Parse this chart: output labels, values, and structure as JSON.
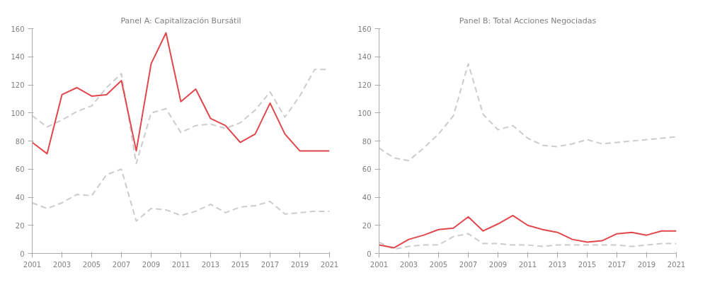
{
  "chart_data": [
    {
      "type": "line",
      "title": "Panel A: Capitalización Bursátil",
      "x": [
        2001,
        2002,
        2003,
        2004,
        2005,
        2006,
        2007,
        2008,
        2009,
        2010,
        2011,
        2012,
        2013,
        2014,
        2015,
        2016,
        2017,
        2018,
        2019,
        2020,
        2021
      ],
      "series": [
        {
          "color": "#cccccc",
          "line_style": "dashed",
          "values": [
            98,
            90,
            95,
            101,
            105,
            118,
            128,
            64,
            100,
            103,
            86,
            91,
            92,
            89,
            93,
            102,
            115,
            97,
            112,
            131,
            131
          ]
        },
        {
          "color": "#cccccc",
          "line_style": "dashed",
          "values": [
            36,
            32,
            36,
            42,
            41,
            56,
            60,
            23,
            32,
            31,
            27,
            30,
            35,
            29,
            33,
            34,
            37,
            28,
            29,
            30,
            30
          ]
        },
        {
          "color": "#e0474c",
          "line_style": "solid",
          "values": [
            79,
            71,
            113,
            118,
            112,
            113,
            123,
            73,
            135,
            157,
            108,
            117,
            96,
            91,
            79,
            85,
            107,
            85,
            73,
            73,
            73
          ]
        }
      ],
      "xlim": [
        2001,
        2021
      ],
      "xticks": [
        2001,
        2003,
        2005,
        2007,
        2009,
        2011,
        2013,
        2015,
        2017,
        2019,
        2021
      ],
      "ylim": [
        0,
        160
      ],
      "yticks": [
        0,
        20,
        40,
        60,
        80,
        100,
        120,
        140,
        160
      ],
      "grid": false,
      "marker": "none"
    },
    {
      "type": "line",
      "title": "Panel B: Total Acciones Negociadas",
      "x": [
        2001,
        2002,
        2003,
        2004,
        2005,
        2006,
        2007,
        2008,
        2009,
        2010,
        2011,
        2012,
        2013,
        2014,
        2015,
        2016,
        2017,
        2018,
        2019,
        2020,
        2021
      ],
      "series": [
        {
          "color": "#cccccc",
          "line_style": "dashed",
          "values": [
            75,
            68,
            66,
            75,
            85,
            98,
            135,
            99,
            88,
            91,
            82,
            77,
            76,
            78,
            81,
            78,
            79,
            80,
            81,
            82,
            83
          ]
        },
        {
          "color": "#cccccc",
          "line_style": "dashed",
          "values": [
            8,
            3,
            5,
            6,
            6,
            12,
            14,
            7,
            7,
            6,
            6,
            5,
            6,
            6,
            6,
            6,
            6,
            5,
            6,
            7,
            7
          ]
        },
        {
          "color": "#e0474c",
          "line_style": "solid",
          "values": [
            6,
            4,
            10,
            13,
            17,
            18,
            26,
            16,
            21,
            27,
            20,
            17,
            15,
            10,
            8,
            9,
            14,
            15,
            13,
            16,
            16
          ]
        }
      ],
      "xlim": [
        2001,
        2021
      ],
      "xticks": [
        2001,
        2003,
        2005,
        2007,
        2009,
        2011,
        2013,
        2015,
        2017,
        2019,
        2021
      ],
      "ylim": [
        0,
        160
      ],
      "yticks": [
        0,
        20,
        40,
        60,
        80,
        100,
        120,
        140,
        160
      ],
      "grid": false,
      "marker": "none"
    }
  ]
}
